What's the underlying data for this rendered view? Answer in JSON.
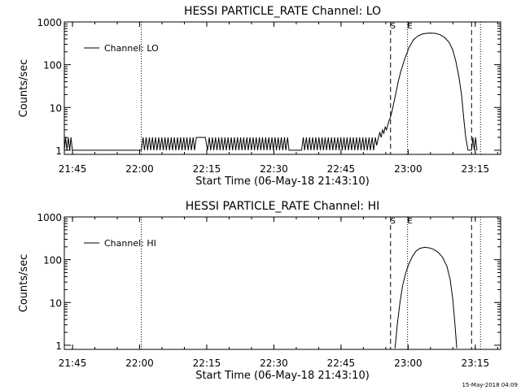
{
  "footer": {
    "timestamp": "15-May-2018 04:09"
  },
  "chart_data": [
    {
      "type": "line",
      "title": "HESSI PARTICLE_RATE Channel: LO",
      "xlabel": "Start Time (06-May-18 21:43:10)",
      "ylabel": "Counts/sec",
      "x_unit": "minutes after 21:43:10",
      "xlim": [
        0,
        97.5
      ],
      "ylim": [
        0.8,
        1000
      ],
      "yscale": "log",
      "xticks": [
        {
          "x": 1.83,
          "label": "21:45"
        },
        {
          "x": 16.83,
          "label": "22:00"
        },
        {
          "x": 31.83,
          "label": "22:15"
        },
        {
          "x": 46.83,
          "label": "22:30"
        },
        {
          "x": 61.83,
          "label": "22:45"
        },
        {
          "x": 76.83,
          "label": "23:00"
        },
        {
          "x": 91.83,
          "label": "23:15"
        }
      ],
      "yticks": [
        {
          "y": 1,
          "label": "1"
        },
        {
          "y": 10,
          "label": "10"
        },
        {
          "y": 100,
          "label": "100"
        },
        {
          "y": 1000,
          "label": "1000"
        }
      ],
      "legend": {
        "label": "Channel: LO",
        "placement": "top-left"
      },
      "grid": false,
      "markers": [
        {
          "x": 17.2,
          "style": "dotted",
          "label": ""
        },
        {
          "x": 72.9,
          "style": "dashed",
          "label": "S"
        },
        {
          "x": 76.7,
          "style": "dotted",
          "label": "E"
        },
        {
          "x": 91.0,
          "style": "dashed",
          "label": ""
        },
        {
          "x": 93.0,
          "style": "dotted",
          "label": ""
        }
      ],
      "series": [
        {
          "values": [
            [
              0,
              1
            ],
            [
              0.3,
              2
            ],
            [
              0.6,
              1
            ],
            [
              0.9,
              2
            ],
            [
              1.2,
              1
            ],
            [
              1.5,
              2
            ],
            [
              1.8,
              1
            ],
            [
              2.2,
              1
            ],
            [
              16.8,
              1
            ],
            [
              17.2,
              1
            ],
            [
              17.6,
              2
            ],
            [
              17.9,
              1
            ],
            [
              18.3,
              2
            ],
            [
              18.6,
              1
            ],
            [
              19.0,
              2
            ],
            [
              19.3,
              1
            ],
            [
              19.7,
              2
            ],
            [
              20.0,
              1
            ],
            [
              20.4,
              2
            ],
            [
              20.7,
              1
            ],
            [
              21.1,
              2
            ],
            [
              21.4,
              1
            ],
            [
              21.8,
              2
            ],
            [
              22.1,
              1
            ],
            [
              22.5,
              2
            ],
            [
              22.8,
              1
            ],
            [
              23.2,
              2
            ],
            [
              23.5,
              1
            ],
            [
              23.9,
              2
            ],
            [
              24.2,
              1
            ],
            [
              24.6,
              2
            ],
            [
              24.9,
              1
            ],
            [
              25.3,
              2
            ],
            [
              25.6,
              1
            ],
            [
              26.0,
              2
            ],
            [
              26.3,
              1
            ],
            [
              26.7,
              2
            ],
            [
              27.0,
              1
            ],
            [
              27.4,
              2
            ],
            [
              27.7,
              1
            ],
            [
              28.1,
              2
            ],
            [
              28.4,
              1
            ],
            [
              28.8,
              2
            ],
            [
              29.1,
              1
            ],
            [
              29.5,
              2
            ],
            [
              31.5,
              2
            ],
            [
              32.0,
              1
            ],
            [
              32.4,
              2
            ],
            [
              32.7,
              1
            ],
            [
              33.1,
              2
            ],
            [
              33.4,
              1
            ],
            [
              33.8,
              2
            ],
            [
              34.1,
              1
            ],
            [
              34.5,
              2
            ],
            [
              34.8,
              1
            ],
            [
              35.2,
              2
            ],
            [
              35.5,
              1
            ],
            [
              35.9,
              2
            ],
            [
              36.2,
              1
            ],
            [
              36.6,
              2
            ],
            [
              36.9,
              1
            ],
            [
              37.3,
              2
            ],
            [
              37.6,
              1
            ],
            [
              38.0,
              2
            ],
            [
              38.3,
              1
            ],
            [
              38.7,
              2
            ],
            [
              39.0,
              1
            ],
            [
              39.4,
              2
            ],
            [
              39.7,
              1
            ],
            [
              40.1,
              2
            ],
            [
              40.4,
              1
            ],
            [
              40.8,
              2
            ],
            [
              41.1,
              1
            ],
            [
              41.5,
              2
            ],
            [
              41.8,
              1
            ],
            [
              42.2,
              2
            ],
            [
              42.5,
              1
            ],
            [
              42.9,
              2
            ],
            [
              43.2,
              1
            ],
            [
              43.6,
              2
            ],
            [
              43.9,
              1
            ],
            [
              44.3,
              2
            ],
            [
              44.6,
              1
            ],
            [
              45.0,
              2
            ],
            [
              45.3,
              1
            ],
            [
              45.7,
              2
            ],
            [
              46.0,
              1
            ],
            [
              46.4,
              2
            ],
            [
              46.7,
              1
            ],
            [
              47.1,
              2
            ],
            [
              47.4,
              1
            ],
            [
              47.8,
              2
            ],
            [
              48.1,
              1
            ],
            [
              48.5,
              2
            ],
            [
              48.8,
              1
            ],
            [
              49.2,
              2
            ],
            [
              49.5,
              1
            ],
            [
              49.9,
              2
            ],
            [
              50.2,
              1
            ],
            [
              53.0,
              1
            ],
            [
              53.4,
              2
            ],
            [
              53.7,
              1
            ],
            [
              54.1,
              2
            ],
            [
              54.4,
              1
            ],
            [
              54.8,
              2
            ],
            [
              55.1,
              1
            ],
            [
              55.5,
              2
            ],
            [
              55.8,
              1
            ],
            [
              56.2,
              2
            ],
            [
              56.5,
              1
            ],
            [
              56.9,
              2
            ],
            [
              57.2,
              1
            ],
            [
              57.6,
              2
            ],
            [
              57.9,
              1
            ],
            [
              58.3,
              2
            ],
            [
              58.6,
              1
            ],
            [
              59.0,
              2
            ],
            [
              59.3,
              1
            ],
            [
              59.7,
              2
            ],
            [
              60.0,
              1
            ],
            [
              60.4,
              2
            ],
            [
              60.7,
              1
            ],
            [
              61.1,
              2
            ],
            [
              61.4,
              1
            ],
            [
              61.8,
              2
            ],
            [
              62.1,
              1
            ],
            [
              62.5,
              2
            ],
            [
              62.8,
              1
            ],
            [
              63.2,
              2
            ],
            [
              63.5,
              1
            ],
            [
              63.9,
              2
            ],
            [
              64.2,
              1
            ],
            [
              64.6,
              2
            ],
            [
              64.9,
              1
            ],
            [
              65.3,
              2
            ],
            [
              65.6,
              1
            ],
            [
              66.0,
              2
            ],
            [
              66.3,
              1
            ],
            [
              66.7,
              2
            ],
            [
              67.0,
              1
            ],
            [
              67.4,
              2
            ],
            [
              67.7,
              1
            ],
            [
              68.1,
              2
            ],
            [
              68.4,
              1
            ],
            [
              68.8,
              2
            ],
            [
              69.1,
              1
            ],
            [
              69.5,
              2
            ],
            [
              69.8,
              1.3
            ],
            [
              70.2,
              2
            ],
            [
              70.5,
              2.6
            ],
            [
              70.8,
              2
            ],
            [
              71.1,
              3
            ],
            [
              71.4,
              2.5
            ],
            [
              71.7,
              3.5
            ],
            [
              72.0,
              3
            ],
            [
              72.3,
              4
            ],
            [
              72.6,
              5
            ],
            [
              72.9,
              6
            ],
            [
              73.3,
              9
            ],
            [
              73.7,
              14
            ],
            [
              74.1,
              22
            ],
            [
              74.6,
              40
            ],
            [
              75.2,
              70
            ],
            [
              76.0,
              130
            ],
            [
              77.0,
              250
            ],
            [
              78.0,
              380
            ],
            [
              79.0,
              470
            ],
            [
              80.0,
              520
            ],
            [
              81.0,
              545
            ],
            [
              82.0,
              550
            ],
            [
              83.0,
              540
            ],
            [
              84.0,
              500
            ],
            [
              85.0,
              430
            ],
            [
              86.0,
              330
            ],
            [
              86.8,
              220
            ],
            [
              87.5,
              120
            ],
            [
              88.2,
              50
            ],
            [
              88.8,
              18
            ],
            [
              89.3,
              5
            ],
            [
              89.7,
              2
            ],
            [
              90.2,
              1
            ],
            [
              91.0,
              1
            ],
            [
              91.3,
              2
            ],
            [
              91.6,
              1
            ],
            [
              91.9,
              2
            ],
            [
              92.2,
              1
            ]
          ]
        }
      ]
    },
    {
      "type": "line",
      "title": "HESSI PARTICLE_RATE Channel: HI",
      "xlabel": "Start Time (06-May-18 21:43:10)",
      "ylabel": "Counts/sec",
      "x_unit": "minutes after 21:43:10",
      "xlim": [
        0,
        97.5
      ],
      "ylim": [
        0.8,
        1000
      ],
      "yscale": "log",
      "xticks": [
        {
          "x": 1.83,
          "label": "21:45"
        },
        {
          "x": 16.83,
          "label": "22:00"
        },
        {
          "x": 31.83,
          "label": "22:15"
        },
        {
          "x": 46.83,
          "label": "22:30"
        },
        {
          "x": 61.83,
          "label": "22:45"
        },
        {
          "x": 76.83,
          "label": "23:00"
        },
        {
          "x": 91.83,
          "label": "23:15"
        }
      ],
      "yticks": [
        {
          "y": 1,
          "label": "1"
        },
        {
          "y": 10,
          "label": "10"
        },
        {
          "y": 100,
          "label": "100"
        },
        {
          "y": 1000,
          "label": "1000"
        }
      ],
      "legend": {
        "label": "Channel: HI",
        "placement": "top-left"
      },
      "grid": false,
      "markers": [
        {
          "x": 17.2,
          "style": "dotted",
          "label": ""
        },
        {
          "x": 72.9,
          "style": "dashed",
          "label": "S"
        },
        {
          "x": 76.7,
          "style": "dotted",
          "label": "E"
        },
        {
          "x": 91.0,
          "style": "dashed",
          "label": ""
        },
        {
          "x": 93.0,
          "style": "dotted",
          "label": ""
        }
      ],
      "series": [
        {
          "values": [
            [
              73.9,
              0.85
            ],
            [
              74.4,
              3
            ],
            [
              75.0,
              10
            ],
            [
              75.6,
              25
            ],
            [
              76.3,
              50
            ],
            [
              77.0,
              80
            ],
            [
              77.8,
              120
            ],
            [
              78.6,
              160
            ],
            [
              79.5,
              185
            ],
            [
              80.5,
              195
            ],
            [
              81.5,
              190
            ],
            [
              82.5,
              175
            ],
            [
              83.5,
              150
            ],
            [
              84.5,
              115
            ],
            [
              85.5,
              70
            ],
            [
              86.2,
              35
            ],
            [
              86.8,
              12
            ],
            [
              87.3,
              3
            ],
            [
              87.7,
              0.85
            ]
          ]
        }
      ]
    }
  ]
}
